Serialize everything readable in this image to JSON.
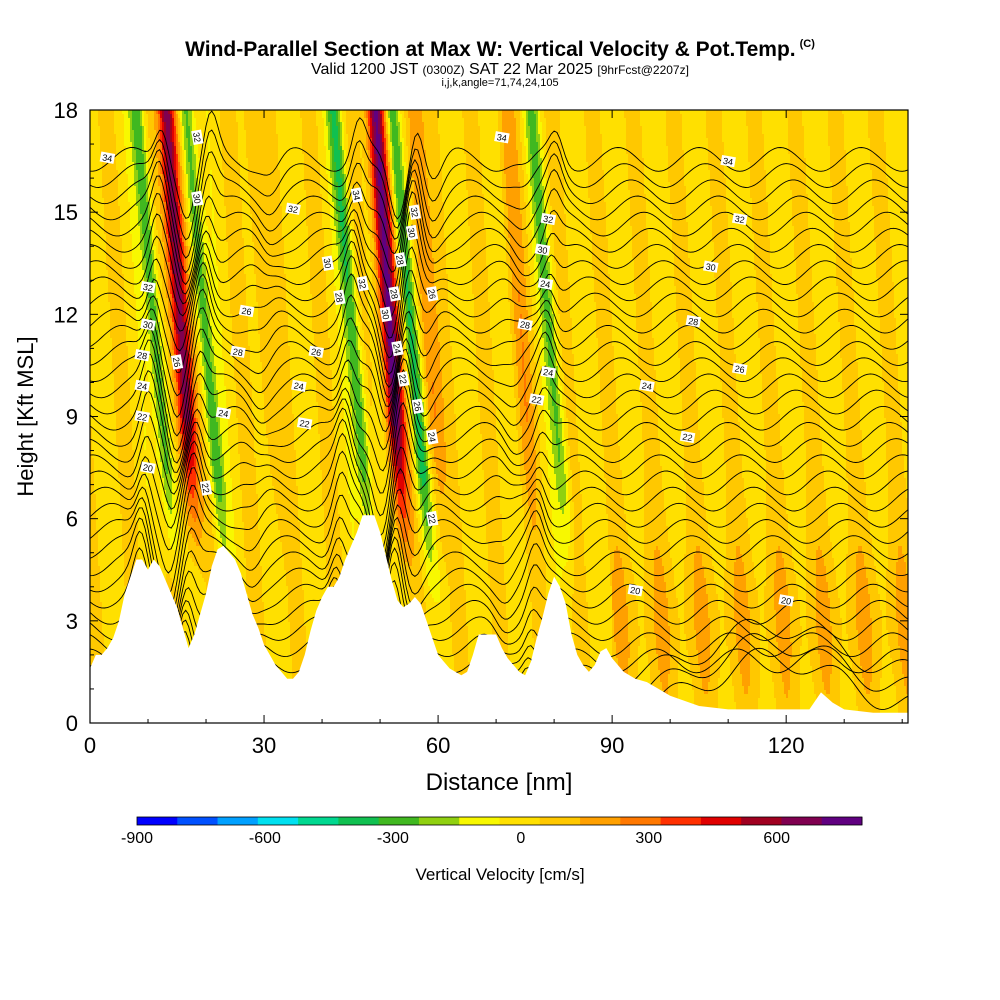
{
  "title": {
    "main": "Wind-Parallel Section at Max W: Vertical Velocity & Pot.Temp.",
    "units_mark": "(C)",
    "valid_a": "Valid 1200 JST",
    "valid_b": "(0300Z)",
    "valid_c": "SAT 22 Mar 2025",
    "valid_d": "[9hrFcst@2207z]",
    "indices": "i,j,k,angle=71,74,24,105"
  },
  "chart_data": {
    "type": "heatmap",
    "xlabel": "Distance [nm]",
    "ylabel": "Height [Kft MSL]",
    "xlim": [
      0,
      141
    ],
    "ylim": [
      0,
      18
    ],
    "xticks": [
      0,
      30,
      60,
      90,
      120
    ],
    "yticks": [
      0,
      3,
      6,
      9,
      12,
      15,
      18
    ],
    "colorbar": {
      "label": "Vertical Velocity [cm/s]",
      "range": [
        -900,
        800
      ],
      "tick_values": [
        -900,
        -600,
        -300,
        0,
        300,
        600
      ],
      "tick_labels": [
        "-900",
        "-600",
        "-300",
        "0",
        "300",
        "600"
      ],
      "colors": [
        "#0000ff",
        "#0050ff",
        "#00a0ff",
        "#00e0f0",
        "#00d890",
        "#10c050",
        "#40b820",
        "#90d010",
        "#f8f800",
        "#ffe000",
        "#ffc800",
        "#ffa000",
        "#ff7800",
        "#ff3000",
        "#e00000",
        "#a00020",
        "#800050",
        "#600080"
      ]
    },
    "terrain": {
      "x": [
        0,
        1,
        2,
        3,
        4,
        5,
        6,
        7,
        8,
        9,
        10,
        11,
        12,
        13,
        14,
        15,
        16,
        17,
        18,
        19,
        20,
        21,
        22,
        23,
        24,
        25,
        26,
        27,
        28,
        29,
        30,
        31,
        32,
        33,
        34,
        35,
        36,
        37,
        38,
        39,
        40,
        41,
        42,
        43,
        44,
        45,
        46,
        47,
        48,
        49,
        50,
        51,
        52,
        53,
        54,
        55,
        56,
        57,
        58,
        59,
        60,
        61,
        62,
        63,
        64,
        65,
        66,
        67,
        68,
        69,
        70,
        71,
        72,
        73,
        74,
        75,
        76,
        77,
        78,
        79,
        80,
        81,
        82,
        83,
        84,
        85,
        86,
        87,
        88,
        89,
        90,
        92,
        94,
        96,
        98,
        100,
        105,
        110,
        115,
        120,
        124,
        126,
        128,
        130,
        135,
        141
      ],
      "y": [
        1.6,
        2.0,
        2.0,
        2.2,
        2.5,
        3.0,
        3.8,
        4.3,
        4.8,
        4.8,
        4.5,
        4.8,
        4.6,
        4.2,
        3.8,
        3.4,
        2.8,
        2.2,
        2.6,
        3.2,
        3.8,
        4.6,
        5.1,
        5.2,
        5.0,
        4.8,
        4.4,
        3.8,
        3.2,
        2.8,
        2.3,
        2.0,
        1.7,
        1.5,
        1.3,
        1.3,
        1.5,
        2.0,
        2.7,
        3.3,
        3.7,
        4.0,
        4.0,
        4.3,
        4.8,
        5.2,
        5.6,
        6.1,
        6.1,
        6.1,
        5.6,
        4.9,
        4.2,
        3.6,
        3.4,
        3.5,
        3.7,
        3.5,
        3.0,
        2.5,
        2.0,
        1.8,
        1.6,
        1.5,
        1.4,
        1.5,
        2.0,
        2.6,
        2.6,
        2.6,
        2.6,
        2.2,
        1.9,
        1.7,
        1.5,
        1.4,
        1.8,
        2.5,
        3.1,
        3.8,
        4.3,
        4.0,
        3.5,
        2.6,
        2.0,
        1.7,
        1.5,
        1.7,
        2.1,
        2.2,
        1.9,
        1.5,
        1.3,
        1.2,
        1.0,
        0.8,
        0.5,
        0.4,
        0.4,
        0.4,
        0.4,
        0.9,
        0.6,
        0.4,
        0.3,
        0.3
      ]
    },
    "updrafts": [
      {
        "x": 15.5,
        "vmax": 700
      },
      {
        "x": 51.5,
        "vmax": 750
      },
      {
        "x": 30,
        "vmax": 150
      },
      {
        "x": 58,
        "vmax": 250
      },
      {
        "x": 74,
        "vmax": 150
      }
    ],
    "downdrafts": [
      {
        "x": 11,
        "vmin": -350
      },
      {
        "x": 19.5,
        "vmin": -350
      },
      {
        "x": 45,
        "vmin": -350
      },
      {
        "x": 55,
        "vmin": -400
      },
      {
        "x": 79,
        "vmin": -250
      }
    ],
    "theta_levels": [
      20,
      22,
      24,
      26,
      28,
      30,
      32,
      34
    ],
    "theta_labels": [
      {
        "x": 3,
        "y": 16.6,
        "v": "34"
      },
      {
        "x": 18.5,
        "y": 17.2,
        "v": "32"
      },
      {
        "x": 18.5,
        "y": 15.4,
        "v": "30"
      },
      {
        "x": 35,
        "y": 15.1,
        "v": "32"
      },
      {
        "x": 10,
        "y": 12.8,
        "v": "32"
      },
      {
        "x": 10,
        "y": 11.7,
        "v": "30"
      },
      {
        "x": 9,
        "y": 10.8,
        "v": "28"
      },
      {
        "x": 9,
        "y": 9.9,
        "v": "24"
      },
      {
        "x": 9,
        "y": 9.0,
        "v": "22"
      },
      {
        "x": 10,
        "y": 7.5,
        "v": "20"
      },
      {
        "x": 15,
        "y": 10.6,
        "v": "26"
      },
      {
        "x": 27,
        "y": 12.1,
        "v": "26"
      },
      {
        "x": 25.5,
        "y": 10.9,
        "v": "28"
      },
      {
        "x": 23,
        "y": 9.1,
        "v": "24"
      },
      {
        "x": 20,
        "y": 6.9,
        "v": "22"
      },
      {
        "x": 41,
        "y": 13.5,
        "v": "30"
      },
      {
        "x": 43,
        "y": 12.5,
        "v": "28"
      },
      {
        "x": 39,
        "y": 10.9,
        "v": "26"
      },
      {
        "x": 36,
        "y": 9.9,
        "v": "24"
      },
      {
        "x": 37,
        "y": 8.8,
        "v": "22"
      },
      {
        "x": 46,
        "y": 15.5,
        "v": "34"
      },
      {
        "x": 47,
        "y": 12.9,
        "v": "32"
      },
      {
        "x": 51,
        "y": 12.0,
        "v": "30"
      },
      {
        "x": 52.5,
        "y": 12.6,
        "v": "28"
      },
      {
        "x": 53,
        "y": 11.0,
        "v": "24"
      },
      {
        "x": 54,
        "y": 10.1,
        "v": "22"
      },
      {
        "x": 56,
        "y": 15.0,
        "v": "32"
      },
      {
        "x": 55.5,
        "y": 14.4,
        "v": "30"
      },
      {
        "x": 53.5,
        "y": 13.6,
        "v": "28"
      },
      {
        "x": 59,
        "y": 12.6,
        "v": "26"
      },
      {
        "x": 56.5,
        "y": 9.3,
        "v": "26"
      },
      {
        "x": 59,
        "y": 8.4,
        "v": "24"
      },
      {
        "x": 59,
        "y": 6.0,
        "v": "22"
      },
      {
        "x": 71,
        "y": 17.2,
        "v": "34"
      },
      {
        "x": 79,
        "y": 14.8,
        "v": "32"
      },
      {
        "x": 78,
        "y": 13.9,
        "v": "30"
      },
      {
        "x": 78.5,
        "y": 12.9,
        "v": "24"
      },
      {
        "x": 75,
        "y": 11.7,
        "v": "28"
      },
      {
        "x": 79,
        "y": 10.3,
        "v": "24"
      },
      {
        "x": 77,
        "y": 9.5,
        "v": "22"
      },
      {
        "x": 110,
        "y": 16.5,
        "v": "34"
      },
      {
        "x": 112,
        "y": 14.8,
        "v": "32"
      },
      {
        "x": 107,
        "y": 13.4,
        "v": "30"
      },
      {
        "x": 104,
        "y": 11.8,
        "v": "28"
      },
      {
        "x": 96,
        "y": 9.9,
        "v": "24"
      },
      {
        "x": 112,
        "y": 10.4,
        "v": "26"
      },
      {
        "x": 103,
        "y": 8.4,
        "v": "22"
      },
      {
        "x": 94,
        "y": 3.9,
        "v": "20"
      },
      {
        "x": 120,
        "y": 3.6,
        "v": "20"
      }
    ]
  }
}
